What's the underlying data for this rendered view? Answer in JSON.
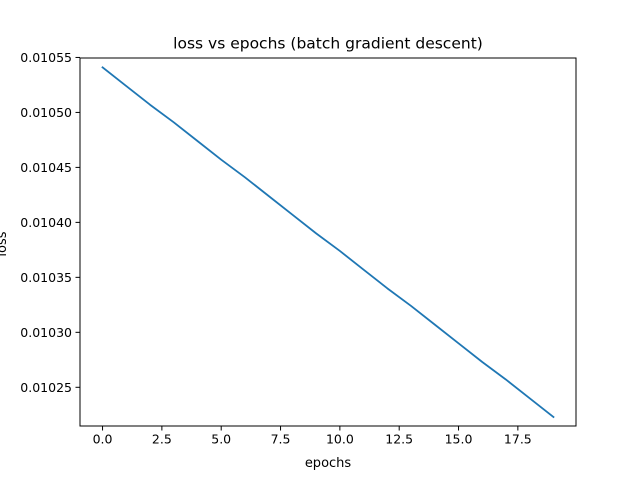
{
  "chart_data": {
    "type": "line",
    "title": "loss vs epochs (batch gradient descent)",
    "xlabel": "epochs",
    "ylabel": "loss",
    "x": [
      0,
      1,
      2,
      3,
      4,
      5,
      6,
      7,
      8,
      9,
      10,
      11,
      12,
      13,
      14,
      15,
      16,
      17,
      18,
      19
    ],
    "series": [
      {
        "values": [
          0.010541,
          0.010524,
          0.010507,
          0.010491,
          0.010474,
          0.010457,
          0.010441,
          0.010424,
          0.010407,
          0.01039,
          0.010374,
          0.010357,
          0.01034,
          0.010324,
          0.010307,
          0.01029,
          0.010273,
          0.010257,
          0.01024,
          0.010223
        ],
        "color": "#1f77b4"
      }
    ],
    "xlim": [
      -0.95,
      19.95
    ],
    "ylim": [
      0.0102148,
      0.0105495
    ],
    "xticks": [
      0.0,
      2.5,
      5.0,
      7.5,
      10.0,
      12.5,
      15.0,
      17.5
    ],
    "xtick_labels": [
      "0.0",
      "2.5",
      "5.0",
      "7.5",
      "10.0",
      "12.5",
      "15.0",
      "17.5"
    ],
    "yticks": [
      0.01025,
      0.0103,
      0.01035,
      0.0104,
      0.01045,
      0.0105,
      0.01055
    ],
    "ytick_labels": [
      "0.01025",
      "0.01030",
      "0.01035",
      "0.01040",
      "0.01045",
      "0.01050",
      "0.01055"
    ],
    "grid": false,
    "legend": false
  }
}
